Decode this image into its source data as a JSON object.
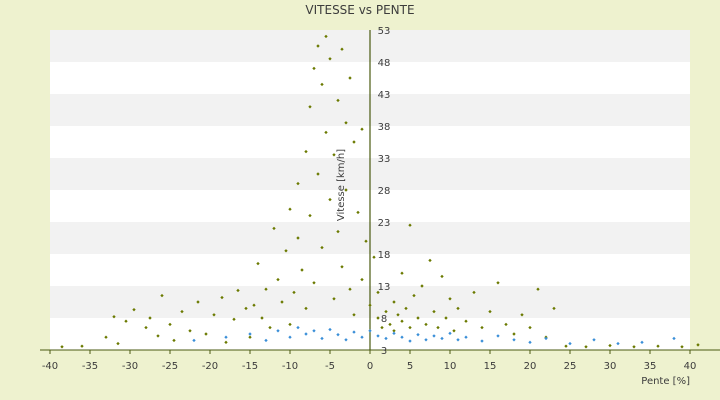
{
  "chart_data": {
    "type": "scatter",
    "title": "VITESSE vs PENTE",
    "xlabel": "Pente [%]",
    "ylabel": "Vitesse [km/h]",
    "xlim": [
      -40,
      40
    ],
    "ylim": [
      3,
      53
    ],
    "x_ticks": [
      -40,
      -35,
      -30,
      -25,
      -20,
      -15,
      -10,
      -5,
      0,
      5,
      10,
      15,
      20,
      25,
      30,
      35,
      40
    ],
    "y_ticks": [
      3,
      8,
      13,
      18,
      23,
      28,
      33,
      38,
      43,
      48,
      53
    ],
    "grid": true,
    "legend": "none",
    "colors": {
      "background": "#eef2cf",
      "band_light": "#ffffff",
      "band_shade": "#f2f2f2",
      "axis": "#4a5a10",
      "series_olive": "#6b7a00",
      "series_blue": "#3a8fd8"
    },
    "series": [
      {
        "color": "#6b7a00",
        "points": [
          [
            -38.5,
            3.5
          ],
          [
            -36.0,
            3.6
          ],
          [
            -33.0,
            5.0
          ],
          [
            -32.0,
            8.2
          ],
          [
            -31.5,
            4.0
          ],
          [
            -30.5,
            7.5
          ],
          [
            -29.5,
            9.3
          ],
          [
            -28.0,
            6.5
          ],
          [
            -27.5,
            8.0
          ],
          [
            -26.5,
            5.2
          ],
          [
            -26.0,
            11.5
          ],
          [
            -25.0,
            7.0
          ],
          [
            -24.5,
            4.5
          ],
          [
            -23.5,
            9.0
          ],
          [
            -22.5,
            6.0
          ],
          [
            -21.5,
            10.5
          ],
          [
            -20.5,
            5.5
          ],
          [
            -19.5,
            8.5
          ],
          [
            -18.5,
            11.2
          ],
          [
            -18.0,
            4.2
          ],
          [
            -17.0,
            7.8
          ],
          [
            -16.5,
            12.3
          ],
          [
            -15.5,
            9.5
          ],
          [
            -15.0,
            5.0
          ],
          [
            -14.5,
            10.0
          ],
          [
            -14.0,
            16.5
          ],
          [
            -13.5,
            8.0
          ],
          [
            -13.0,
            12.5
          ],
          [
            -12.5,
            6.5
          ],
          [
            -12.0,
            22.0
          ],
          [
            -11.5,
            14.0
          ],
          [
            -11.0,
            10.5
          ],
          [
            -10.5,
            18.5
          ],
          [
            -10.0,
            7.0
          ],
          [
            -10.0,
            25.0
          ],
          [
            -9.5,
            12.0
          ],
          [
            -9.0,
            20.5
          ],
          [
            -9.0,
            29.0
          ],
          [
            -8.5,
            15.5
          ],
          [
            -8.0,
            9.5
          ],
          [
            -8.0,
            34.0
          ],
          [
            -7.5,
            24.0
          ],
          [
            -7.5,
            41.0
          ],
          [
            -7.0,
            13.5
          ],
          [
            -7.0,
            47.0
          ],
          [
            -6.5,
            30.5
          ],
          [
            -6.5,
            50.5
          ],
          [
            -6.0,
            19.0
          ],
          [
            -6.0,
            44.5
          ],
          [
            -5.5,
            37.0
          ],
          [
            -5.5,
            52.0
          ],
          [
            -5.0,
            26.5
          ],
          [
            -5.0,
            48.5
          ],
          [
            -4.5,
            33.5
          ],
          [
            -4.5,
            11.0
          ],
          [
            -4.0,
            42.0
          ],
          [
            -4.0,
            21.5
          ],
          [
            -3.5,
            50.0
          ],
          [
            -3.5,
            16.0
          ],
          [
            -3.0,
            38.5
          ],
          [
            -3.0,
            28.0
          ],
          [
            -2.5,
            45.5
          ],
          [
            -2.5,
            12.5
          ],
          [
            -2.0,
            35.5
          ],
          [
            -2.0,
            8.5
          ],
          [
            -1.5,
            24.5
          ],
          [
            -1.0,
            37.5
          ],
          [
            -1.0,
            14.0
          ],
          [
            -0.5,
            20.0
          ],
          [
            0.0,
            10.0
          ],
          [
            0.5,
            17.5
          ],
          [
            1.0,
            8.0
          ],
          [
            1.0,
            12.0
          ],
          [
            1.5,
            6.5
          ],
          [
            2.0,
            9.0
          ],
          [
            2.5,
            7.0
          ],
          [
            3.0,
            10.5
          ],
          [
            3.0,
            6.0
          ],
          [
            3.5,
            8.5
          ],
          [
            4.0,
            15.0
          ],
          [
            4.0,
            7.5
          ],
          [
            4.5,
            9.5
          ],
          [
            5.0,
            22.5
          ],
          [
            5.0,
            6.5
          ],
          [
            5.5,
            11.5
          ],
          [
            6.0,
            8.0
          ],
          [
            6.5,
            13.0
          ],
          [
            7.0,
            7.0
          ],
          [
            7.5,
            17.0
          ],
          [
            8.0,
            9.0
          ],
          [
            8.5,
            6.5
          ],
          [
            9.0,
            14.5
          ],
          [
            9.5,
            8.0
          ],
          [
            10.0,
            11.0
          ],
          [
            10.5,
            6.0
          ],
          [
            11.0,
            9.5
          ],
          [
            12.0,
            7.5
          ],
          [
            13.0,
            12.0
          ],
          [
            14.0,
            6.5
          ],
          [
            15.0,
            9.0
          ],
          [
            16.0,
            13.5
          ],
          [
            17.0,
            7.0
          ],
          [
            18.0,
            5.5
          ],
          [
            19.0,
            8.5
          ],
          [
            20.0,
            6.5
          ],
          [
            21.0,
            12.5
          ],
          [
            22.0,
            5.0
          ],
          [
            23.0,
            9.5
          ],
          [
            24.5,
            3.6
          ],
          [
            27.0,
            3.5
          ],
          [
            30.0,
            3.7
          ],
          [
            33.0,
            3.5
          ],
          [
            36.0,
            3.6
          ],
          [
            39.0,
            3.5
          ],
          [
            41.0,
            3.8
          ]
        ]
      },
      {
        "color": "#3a8fd8",
        "points": [
          [
            -22.0,
            4.5
          ],
          [
            -18.0,
            5.0
          ],
          [
            -15.0,
            5.5
          ],
          [
            -13.0,
            4.5
          ],
          [
            -11.5,
            6.0
          ],
          [
            -10.0,
            5.0
          ],
          [
            -9.0,
            6.5
          ],
          [
            -8.0,
            5.5
          ],
          [
            -7.0,
            6.0
          ],
          [
            -6.0,
            4.8
          ],
          [
            -5.0,
            6.2
          ],
          [
            -4.0,
            5.4
          ],
          [
            -3.0,
            4.6
          ],
          [
            -2.0,
            5.8
          ],
          [
            -1.0,
            5.0
          ],
          [
            0.0,
            6.0
          ],
          [
            1.0,
            5.2
          ],
          [
            2.0,
            4.8
          ],
          [
            3.0,
            5.6
          ],
          [
            4.0,
            5.0
          ],
          [
            5.0,
            4.4
          ],
          [
            6.0,
            5.4
          ],
          [
            7.0,
            4.6
          ],
          [
            8.0,
            5.2
          ],
          [
            9.0,
            4.8
          ],
          [
            10.0,
            5.6
          ],
          [
            11.0,
            4.6
          ],
          [
            12.0,
            5.0
          ],
          [
            14.0,
            4.4
          ],
          [
            16.0,
            5.2
          ],
          [
            18.0,
            4.6
          ],
          [
            20.0,
            4.2
          ],
          [
            22.0,
            4.8
          ],
          [
            25.0,
            4.0
          ],
          [
            28.0,
            4.6
          ],
          [
            31.0,
            4.0
          ],
          [
            34.0,
            4.2
          ],
          [
            38.0,
            4.8
          ]
        ]
      }
    ]
  }
}
